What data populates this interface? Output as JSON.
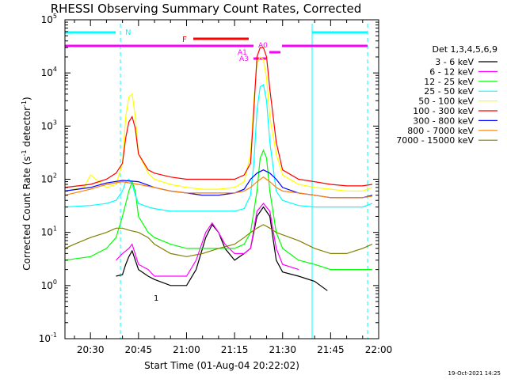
{
  "chart_data": {
    "type": "line",
    "title": "RHESSI Observing Summary Count Rates, Corrected",
    "xlabel": "Start Time (01-Aug-04 20:22:02)",
    "ylabel": "Corrected Count Rate (s⁻¹ detector⁻¹)",
    "ylabel_main": "Corrected Count Rate (s",
    "ylabel_sup1": "-1",
    "ylabel_mid": " detector",
    "ylabel_sup2": "-1",
    "ylabel_close": ")",
    "scale": "log",
    "xlim": [
      "20:22:02",
      "22:00:00"
    ],
    "ylim": [
      0.1,
      100000
    ],
    "x_ticks": [
      "20:30",
      "20:45",
      "21:00",
      "21:15",
      "21:30",
      "21:45",
      "22:00"
    ],
    "x_tick_minutes": [
      30,
      45,
      60,
      75,
      90,
      105,
      120
    ],
    "y_ticks": [
      {
        "base": "10",
        "exp": "-1",
        "value": 0.1
      },
      {
        "base": "10",
        "exp": "0",
        "value": 1
      },
      {
        "base": "10",
        "exp": "1",
        "value": 10
      },
      {
        "base": "10",
        "exp": "2",
        "value": 100
      },
      {
        "base": "10",
        "exp": "3",
        "value": 1000
      },
      {
        "base": "10",
        "exp": "4",
        "value": 10000
      },
      {
        "base": "10",
        "exp": "5",
        "value": 100000
      }
    ],
    "legend_title": "Det 1,3,4,5,6,9",
    "legend_position": "right",
    "series": [
      {
        "name": "3 - 6 keV",
        "color": "#000000",
        "x": [
          22,
          30,
          35,
          38,
          40,
          41,
          42,
          43,
          45,
          48,
          50,
          55,
          60,
          63,
          66,
          68,
          70,
          72,
          75,
          78,
          80,
          82,
          84,
          86,
          88,
          90,
          95,
          100,
          104
        ],
        "y": [
          null,
          null,
          null,
          1.5,
          1.6,
          2.5,
          3.5,
          4.5,
          2.0,
          1.5,
          1.3,
          1.0,
          1.0,
          2.0,
          8.0,
          14,
          10,
          5,
          3,
          4,
          5,
          20,
          30,
          20,
          3,
          1.8,
          1.5,
          1.2,
          0.8
        ]
      },
      {
        "name": "6 - 12 keV",
        "color": "#ff00ff",
        "x": [
          38,
          40,
          42,
          43,
          45,
          48,
          50,
          55,
          60,
          63,
          66,
          68,
          70,
          72,
          75,
          78,
          80,
          82,
          84,
          86,
          88,
          90,
          95
        ],
        "y": [
          3,
          4,
          5,
          6,
          2.5,
          2,
          1.5,
          1.5,
          1.5,
          3,
          10,
          15,
          10,
          6,
          4,
          4,
          5,
          25,
          35,
          25,
          5,
          2.5,
          2
        ]
      },
      {
        "name": "12 - 25 keV",
        "color": "#00ff00",
        "x": [
          22,
          30,
          35,
          38,
          40,
          42,
          43,
          44,
          45,
          48,
          50,
          55,
          60,
          65,
          70,
          75,
          78,
          80,
          82,
          83,
          84,
          85,
          86,
          88,
          90,
          95,
          100,
          105,
          110,
          115,
          118
        ],
        "y": [
          3,
          3.5,
          5,
          8,
          20,
          60,
          90,
          60,
          20,
          10,
          8,
          6,
          5,
          5,
          5,
          5,
          6,
          10,
          60,
          250,
          350,
          250,
          60,
          10,
          5,
          3,
          2.5,
          2,
          2,
          2,
          2
        ]
      },
      {
        "name": "25 - 50 keV",
        "color": "#00ffff",
        "x": [
          22,
          30,
          35,
          38,
          40,
          41,
          42,
          43,
          44,
          45,
          48,
          50,
          55,
          60,
          65,
          70,
          75,
          78,
          80,
          81,
          82,
          83,
          84,
          85,
          86,
          88,
          90,
          95,
          100,
          105,
          110,
          115,
          118
        ],
        "y": [
          30,
          32,
          35,
          40,
          60,
          90,
          100,
          80,
          50,
          35,
          30,
          28,
          25,
          25,
          25,
          25,
          25,
          28,
          50,
          200,
          2000,
          5500,
          6000,
          3000,
          500,
          60,
          40,
          32,
          30,
          30,
          30,
          30,
          35
        ]
      },
      {
        "name": "50 - 100 keV",
        "color": "#ffff00",
        "x": [
          22,
          28,
          30,
          35,
          38,
          40,
          41,
          42,
          43,
          44,
          45,
          48,
          50,
          55,
          60,
          65,
          70,
          75,
          78,
          80,
          81,
          82,
          83,
          84,
          85,
          86,
          88,
          90,
          95,
          100,
          105,
          110,
          115,
          118
        ],
        "y": [
          60,
          70,
          120,
          70,
          80,
          200,
          1500,
          3500,
          4000,
          1500,
          300,
          130,
          100,
          80,
          70,
          65,
          65,
          70,
          90,
          300,
          3000,
          15000,
          20000,
          18000,
          8000,
          1500,
          300,
          120,
          80,
          70,
          65,
          60,
          60,
          70
        ]
      },
      {
        "name": "100 - 300 keV",
        "color": "#ff0000",
        "x": [
          22,
          30,
          35,
          38,
          40,
          41,
          42,
          43,
          44,
          45,
          48,
          50,
          55,
          60,
          65,
          70,
          75,
          78,
          80,
          81,
          82,
          83,
          84,
          85,
          86,
          88,
          90,
          95,
          100,
          105,
          110,
          115,
          118
        ],
        "y": [
          70,
          80,
          100,
          130,
          200,
          600,
          1200,
          1500,
          900,
          300,
          150,
          130,
          110,
          100,
          100,
          100,
          100,
          120,
          200,
          2000,
          20000,
          30000,
          30000,
          20000,
          5000,
          500,
          150,
          100,
          90,
          80,
          75,
          75,
          80
        ]
      },
      {
        "name": "300 - 800 keV",
        "color": "#0000ff",
        "x": [
          22,
          30,
          35,
          40,
          45,
          50,
          55,
          60,
          65,
          70,
          75,
          78,
          80,
          82,
          84,
          86,
          88,
          90,
          95,
          100,
          105,
          110,
          115,
          118
        ],
        "y": [
          60,
          70,
          85,
          95,
          90,
          70,
          60,
          55,
          50,
          50,
          55,
          65,
          100,
          130,
          150,
          130,
          100,
          70,
          55,
          50,
          45,
          45,
          45,
          50
        ]
      },
      {
        "name": "800 - 7000 keV",
        "color": "#ff8000",
        "x": [
          22,
          30,
          35,
          40,
          45,
          50,
          55,
          60,
          65,
          70,
          75,
          78,
          80,
          82,
          84,
          86,
          88,
          90,
          95,
          100,
          105,
          110,
          115,
          118
        ],
        "y": [
          50,
          65,
          80,
          90,
          80,
          70,
          60,
          55,
          55,
          55,
          55,
          60,
          70,
          90,
          110,
          90,
          70,
          60,
          55,
          50,
          45,
          45,
          45,
          48
        ]
      },
      {
        "name": "7000 - 15000 keV",
        "color": "#808000",
        "x": [
          22,
          25,
          30,
          35,
          38,
          40,
          42,
          45,
          48,
          50,
          55,
          60,
          65,
          70,
          75,
          78,
          80,
          82,
          84,
          86,
          88,
          90,
          95,
          100,
          105,
          110,
          115,
          118
        ],
        "y": [
          5,
          6,
          8,
          10,
          12,
          12,
          11,
          10,
          8,
          6,
          4,
          3.5,
          4,
          5,
          6,
          8,
          10,
          12,
          14,
          12,
          10,
          9,
          7,
          5,
          4,
          4,
          5,
          6
        ]
      }
    ],
    "annotations": {
      "flare_label": "F",
      "night_label": "N",
      "attenuator_labels": [
        "A0",
        "A1",
        "A3"
      ],
      "detail_label": "1"
    },
    "timestamp": "19-Oct-2021 14:25"
  }
}
